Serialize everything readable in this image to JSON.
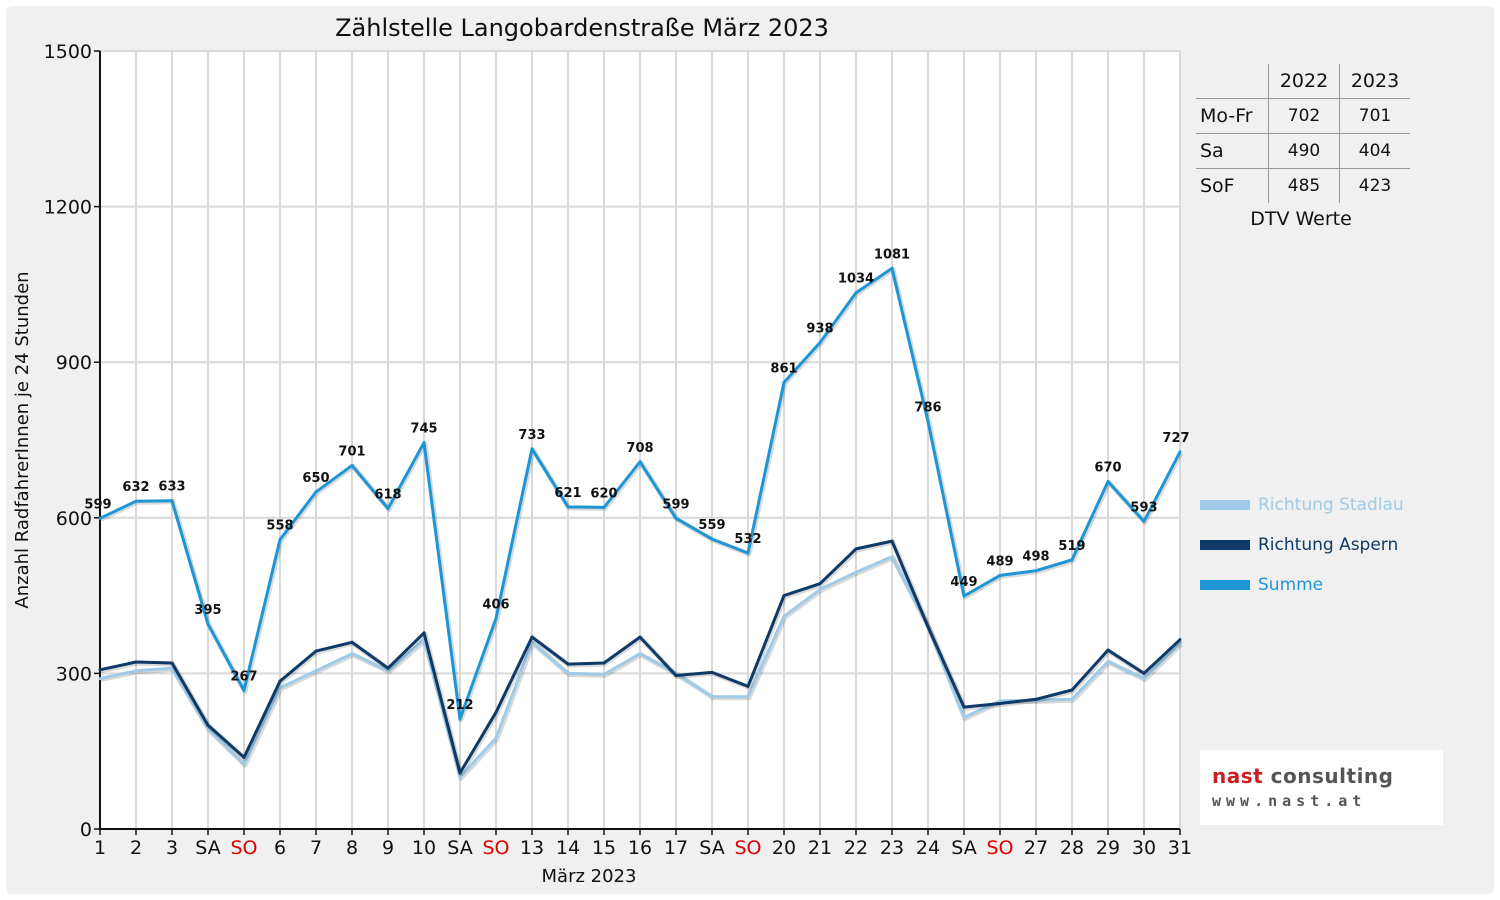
{
  "chart_data": {
    "type": "line",
    "title": "Zählstelle Langobardenstraße März 2023",
    "xlabel": "März 2023",
    "ylabel": "Anzahl RadfahrerInnen je 24 Stunden",
    "ylim": [
      0,
      1500
    ],
    "yticks": [
      0,
      300,
      600,
      900,
      1200,
      1500
    ],
    "grid": true,
    "legend_position": "right",
    "categories": [
      "1",
      "2",
      "3",
      "SA",
      "SO",
      "6",
      "7",
      "8",
      "9",
      "10",
      "SA",
      "SO",
      "13",
      "14",
      "15",
      "16",
      "17",
      "SA",
      "SO",
      "20",
      "21",
      "22",
      "23",
      "24",
      "SA",
      "SO",
      "27",
      "28",
      "29",
      "30",
      "31"
    ],
    "weekend_sunday_color": "#e00000",
    "series": [
      {
        "name": "Richtung Stadlau",
        "color": "#9fcbe8",
        "values": [
          290,
          305,
          310,
          193,
          125,
          272,
          305,
          338,
          305,
          365,
          100,
          175,
          360,
          300,
          298,
          338,
          300,
          255,
          255,
          410,
          462,
          495,
          525,
          390,
          215,
          247,
          248,
          250,
          323,
          290,
          358
        ]
      },
      {
        "name": "Richtung Aspern",
        "color": "#0d3a66",
        "values": [
          307,
          322,
          320,
          200,
          138,
          285,
          343,
          360,
          310,
          378,
          108,
          225,
          370,
          318,
          320,
          370,
          296,
          302,
          275,
          450,
          473,
          540,
          555,
          390,
          235,
          242,
          250,
          268,
          345,
          300,
          365
        ]
      },
      {
        "name": "Summe",
        "color": "#1e96d6",
        "values": [
          599,
          632,
          633,
          395,
          267,
          558,
          650,
          701,
          618,
          745,
          212,
          406,
          733,
          621,
          620,
          708,
          599,
          559,
          532,
          861,
          938,
          1034,
          1081,
          786,
          449,
          489,
          498,
          519,
          670,
          593,
          727
        ]
      }
    ],
    "data_labels": [
      "599",
      "632",
      "633",
      "395",
      "267",
      "558",
      "650",
      "701",
      "618",
      "745",
      "212",
      "406",
      "733",
      "621",
      "620",
      "708",
      "599",
      "559",
      "532",
      "861",
      "938",
      "1034",
      "1081",
      "786",
      "449",
      "489",
      "498",
      "519",
      "670",
      "593",
      "727"
    ]
  },
  "dtv_table": {
    "headers": [
      "",
      "2022",
      "2023"
    ],
    "rows": [
      {
        "label": "Mo-Fr",
        "v2022": "702",
        "v2023": "701"
      },
      {
        "label": "Sa",
        "v2022": "490",
        "v2023": "404"
      },
      {
        "label": "SoF",
        "v2022": "485",
        "v2023": "423"
      }
    ],
    "caption": "DTV Werte"
  },
  "logo": {
    "brand_a": "nast",
    "brand_b": "consulting",
    "website": "www.nast.at",
    "brand_a_color": "#cc1f24",
    "brand_b_color": "#555555"
  }
}
